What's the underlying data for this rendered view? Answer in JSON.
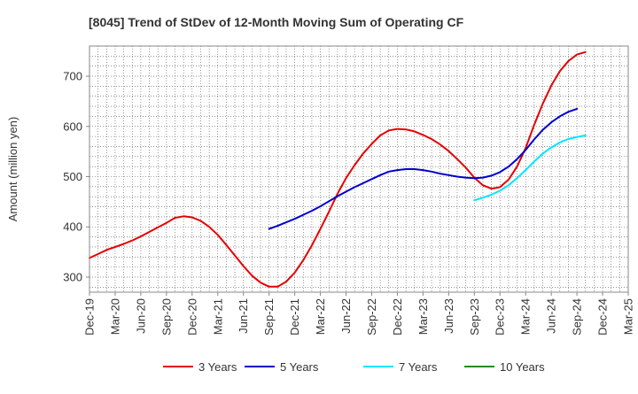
{
  "chart_data": {
    "type": "line",
    "title": "[8045]  Trend of StDev of 12-Month Moving Sum of Operating CF",
    "xlabel": "",
    "ylabel": "Amount (million yen)",
    "ylim": [
      270,
      760
    ],
    "yticks": [
      300,
      400,
      500,
      600,
      700
    ],
    "xlim_months": [
      "2019-12",
      "2025-03"
    ],
    "xticks": [
      "Dec-19",
      "Mar-20",
      "Jun-20",
      "Sep-20",
      "Dec-20",
      "Mar-21",
      "Jun-21",
      "Sep-21",
      "Dec-21",
      "Mar-22",
      "Jun-22",
      "Sep-22",
      "Dec-22",
      "Mar-23",
      "Jun-23",
      "Sep-23",
      "Dec-23",
      "Mar-24",
      "Jun-24",
      "Sep-24",
      "Dec-24",
      "Mar-25"
    ],
    "grid": true,
    "legend_position": "bottom",
    "series": [
      {
        "name": "3 Years",
        "color": "#e60000",
        "start": "2019-12",
        "values": [
          338,
          346,
          354,
          360,
          366,
          373,
          381,
          390,
          399,
          408,
          418,
          421,
          419,
          412,
          400,
          384,
          364,
          343,
          322,
          303,
          289,
          281,
          281,
          291,
          309,
          334,
          363,
          396,
          430,
          466,
          497,
          523,
          546,
          565,
          582,
          592,
          595,
          594,
          590,
          583,
          575,
          564,
          551,
          535,
          518,
          498,
          483,
          476,
          479,
          494,
          520,
          557,
          603,
          645,
          681,
          710,
          730,
          743,
          748
        ]
      },
      {
        "name": "5 Years",
        "color": "#0000cc",
        "start": "2021-09",
        "values": [
          396,
          402,
          409,
          416,
          424,
          432,
          441,
          451,
          461,
          470,
          479,
          487,
          495,
          503,
          510,
          513,
          515,
          515,
          513,
          510,
          506,
          503,
          500,
          498,
          497,
          498,
          502,
          509,
          520,
          535,
          553,
          574,
          593,
          608,
          620,
          629,
          635
        ]
      },
      {
        "name": "7 Years",
        "color": "#00e5ff",
        "start": "2023-09",
        "values": [
          453,
          458,
          464,
          472,
          483,
          497,
          513,
          530,
          546,
          558,
          568,
          575,
          579,
          582
        ]
      },
      {
        "name": "10 Years",
        "color": "#228b22",
        "start": "2024-09",
        "values": []
      }
    ]
  }
}
